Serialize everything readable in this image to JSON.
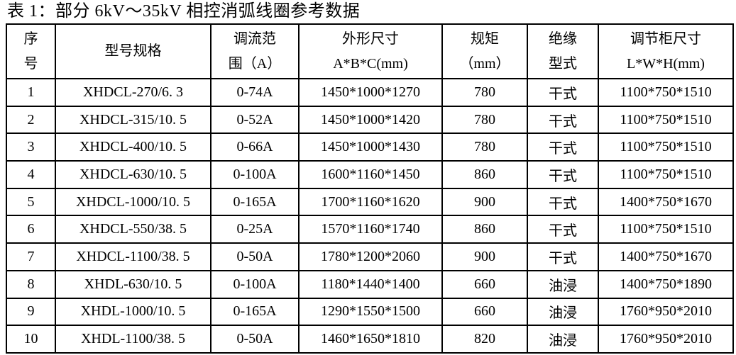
{
  "page": {
    "title": "表 1：部分 6kV～35kV 相控消弧线圈参考数据"
  },
  "table": {
    "columns": [
      {
        "id": "serial",
        "label_line1": "序",
        "label_line2": "号"
      },
      {
        "id": "model",
        "label_line1": "型号规格",
        "label_line2": ""
      },
      {
        "id": "current-range",
        "label_line1": "调流范",
        "label_line2": "围（A）"
      },
      {
        "id": "dimensions",
        "label_line1": "外形尺寸",
        "label_line2": "A*B*C(mm)"
      },
      {
        "id": "gauge",
        "label_line1": "规矩",
        "label_line2": "（mm）"
      },
      {
        "id": "insulation",
        "label_line1": "绝缘",
        "label_line2": "型式"
      },
      {
        "id": "cabinet-size",
        "label_line1": "调节柜尺寸",
        "label_line2": "L*W*H(mm)"
      }
    ],
    "rows": [
      [
        "1",
        "XHDCL-270/6. 3",
        "0-74A",
        "1450*1000*1270",
        "780",
        "干式",
        "1100*750*1510"
      ],
      [
        "2",
        "XHDCL-315/10. 5",
        "0-52A",
        "1450*1000*1420",
        "780",
        "干式",
        "1100*750*1510"
      ],
      [
        "3",
        "XHDCL-400/10. 5",
        "0-66A",
        "1450*1000*1430",
        "780",
        "干式",
        "1100*750*1510"
      ],
      [
        "4",
        "XHDCL-630/10. 5",
        "0-100A",
        "1600*1160*1450",
        "860",
        "干式",
        "1100*750*1510"
      ],
      [
        "5",
        "XHDCL-1000/10. 5",
        "0-165A",
        "1700*1160*1620",
        "900",
        "干式",
        "1400*750*1670"
      ],
      [
        "6",
        "XHDCL-550/38. 5",
        "0-25A",
        "1570*1160*1740",
        "860",
        "干式",
        "1100*750*1510"
      ],
      [
        "7",
        "XHDCL-1100/38. 5",
        "0-50A",
        "1780*1200*2060",
        "900",
        "干式",
        "1400*750*1670"
      ],
      [
        "8",
        "XHDL-630/10. 5",
        "0-100A",
        "1180*1440*1400",
        "660",
        "油浸",
        "1400*750*1890"
      ],
      [
        "9",
        "XHDL-1000/10. 5",
        "0-165A",
        "1290*1550*1500",
        "660",
        "油浸",
        "1760*950*2010"
      ],
      [
        "10",
        "XHDL-1100/38. 5",
        "0-50A",
        "1460*1650*1810",
        "820",
        "油浸",
        "1760*950*2010"
      ]
    ]
  }
}
